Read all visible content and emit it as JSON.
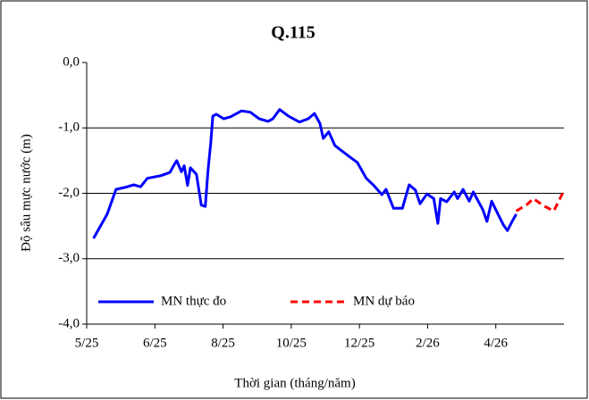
{
  "chart_data": {
    "type": "line",
    "title": "Q.115",
    "x_label": "Thời gian (tháng/năm)",
    "y_label": "Độ sâu mực nước (m)",
    "xlim": [
      0,
      7
    ],
    "xticks": [
      {
        "value": 0,
        "label": "5/25"
      },
      {
        "value": 1,
        "label": "6/25"
      },
      {
        "value": 2,
        "label": "8/25"
      },
      {
        "value": 3,
        "label": "10/25"
      },
      {
        "value": 4,
        "label": "12/25"
      },
      {
        "value": 5,
        "label": "2/26"
      },
      {
        "value": 6,
        "label": "4/26"
      }
    ],
    "ylim": [
      -4,
      0
    ],
    "yticks": [
      {
        "value": -4,
        "label": "-4,0"
      },
      {
        "value": -3,
        "label": "-3,0"
      },
      {
        "value": -2,
        "label": "-2,0"
      },
      {
        "value": -1,
        "label": "-1,0"
      },
      {
        "value": 0,
        "label": "0,0"
      }
    ],
    "grid": true,
    "series": [
      {
        "name": "MN thực đo",
        "color": "#0000ff",
        "style": "solid",
        "x": [
          0.1,
          0.3,
          0.43,
          0.56,
          0.69,
          0.79,
          0.89,
          1.09,
          1.22,
          1.28,
          1.32,
          1.39,
          1.43,
          1.48,
          1.52,
          1.61,
          1.68,
          1.74,
          1.78,
          1.82,
          1.85,
          1.9,
          2.01,
          2.11,
          2.27,
          2.4,
          2.53,
          2.66,
          2.73,
          2.83,
          2.96,
          3.12,
          3.25,
          3.34,
          3.42,
          3.47,
          3.55,
          3.64,
          3.84,
          3.97,
          4.1,
          4.21,
          4.33,
          4.39,
          4.5,
          4.63,
          4.73,
          4.82,
          4.89,
          4.99,
          5.09,
          5.15,
          5.19,
          5.28,
          5.39,
          5.44,
          5.52,
          5.61,
          5.67,
          5.81,
          5.87,
          5.94,
          6.0,
          6.11,
          6.17,
          6.24,
          6.3
        ],
        "values": [
          -2.69,
          -2.32,
          -1.94,
          -1.91,
          -1.87,
          -1.9,
          -1.77,
          -1.73,
          -1.68,
          -1.57,
          -1.5,
          -1.67,
          -1.58,
          -1.88,
          -1.61,
          -1.71,
          -2.18,
          -2.2,
          -1.64,
          -1.23,
          -0.82,
          -0.79,
          -0.86,
          -0.83,
          -0.74,
          -0.76,
          -0.86,
          -0.9,
          -0.86,
          -0.72,
          -0.82,
          -0.91,
          -0.86,
          -0.78,
          -0.93,
          -1.16,
          -1.06,
          -1.27,
          -1.43,
          -1.53,
          -1.77,
          -1.88,
          -2.02,
          -1.94,
          -2.23,
          -2.23,
          -1.87,
          -1.95,
          -2.16,
          -2.01,
          -2.08,
          -2.46,
          -2.08,
          -2.13,
          -1.98,
          -2.08,
          -1.94,
          -2.12,
          -1.98,
          -2.25,
          -2.43,
          -2.12,
          -2.25,
          -2.48,
          -2.57,
          -2.43,
          -2.32
        ]
      },
      {
        "name": "MN dự báo",
        "color": "#ff0000",
        "style": "dashed",
        "x": [
          6.3,
          6.46,
          6.55,
          6.7,
          6.85,
          6.99
        ],
        "values": [
          -2.27,
          -2.17,
          -2.08,
          -2.19,
          -2.27,
          -1.98
        ]
      }
    ]
  }
}
